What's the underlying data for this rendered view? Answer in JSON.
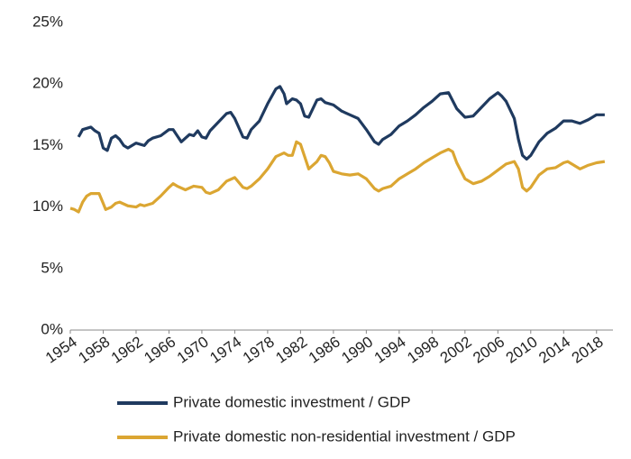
{
  "chart_data": {
    "type": "line",
    "xlim": [
      1954,
      2020
    ],
    "xticks": [
      1954,
      1958,
      1962,
      1966,
      1970,
      1974,
      1978,
      1982,
      1986,
      1990,
      1994,
      1998,
      2002,
      2006,
      2010,
      2014,
      2018
    ],
    "ylim": [
      0,
      25
    ],
    "yticks": [
      {
        "value": 0,
        "label": "0%"
      },
      {
        "value": 5,
        "label": "5%"
      },
      {
        "value": 10,
        "label": "10%"
      },
      {
        "value": 15,
        "label": "15%"
      },
      {
        "value": 20,
        "label": "20%"
      },
      {
        "value": 25,
        "label": "25%"
      }
    ],
    "grid": false,
    "legend": "bottom",
    "series": [
      {
        "name": "Private domestic investment / GDP",
        "color": "#1f3a5f",
        "x": [
          1955,
          1955.5,
          1956,
          1956.5,
          1957,
          1957.5,
          1958,
          1958.5,
          1959,
          1959.5,
          1960,
          1960.5,
          1961,
          1961.5,
          1962,
          1963,
          1963.5,
          1964,
          1965,
          1966,
          1966.5,
          1967,
          1967.5,
          1968,
          1968.5,
          1969,
          1969.5,
          1970,
          1970.5,
          1971,
          1972,
          1973,
          1973.5,
          1974,
          1975,
          1975.5,
          1976,
          1977,
          1978,
          1979,
          1979.5,
          1980,
          1980.3,
          1981,
          1981.5,
          1982,
          1982.5,
          1983,
          1984,
          1984.5,
          1985,
          1986,
          1987,
          1988,
          1989,
          1990,
          1991,
          1991.5,
          1992,
          1993,
          1994,
          1995,
          1996,
          1997,
          1998,
          1999,
          2000,
          2001,
          2002,
          2003,
          2004,
          2005,
          2006,
          2006.5,
          2007,
          2008,
          2008.5,
          2009,
          2009.5,
          2010,
          2011,
          2012,
          2013,
          2014,
          2015,
          2016,
          2017,
          2018,
          2019
        ],
        "values": [
          15.7,
          16.3,
          16.4,
          16.5,
          16.2,
          16.0,
          14.8,
          14.6,
          15.6,
          15.8,
          15.5,
          15.0,
          14.8,
          15.0,
          15.2,
          15.0,
          15.4,
          15.6,
          15.8,
          16.3,
          16.3,
          15.8,
          15.3,
          15.6,
          15.9,
          15.8,
          16.2,
          15.7,
          15.6,
          16.2,
          16.9,
          17.6,
          17.7,
          17.2,
          15.7,
          15.6,
          16.3,
          17.0,
          18.4,
          19.6,
          19.8,
          19.2,
          18.4,
          18.8,
          18.7,
          18.4,
          17.4,
          17.3,
          18.7,
          18.8,
          18.5,
          18.3,
          17.8,
          17.5,
          17.2,
          16.3,
          15.3,
          15.1,
          15.5,
          15.9,
          16.6,
          17.0,
          17.5,
          18.1,
          18.6,
          19.2,
          19.3,
          18.0,
          17.3,
          17.4,
          18.1,
          18.8,
          19.3,
          19.0,
          18.6,
          17.2,
          15.5,
          14.2,
          13.9,
          14.2,
          15.3,
          16.0,
          16.4,
          17.0,
          17.0,
          16.8,
          17.1,
          17.5,
          17.5
        ]
      },
      {
        "name": "Private domestic non-residential investment / GDP",
        "color": "#dba632",
        "x": [
          1954,
          1954.5,
          1955,
          1955.5,
          1956,
          1956.5,
          1957,
          1957.5,
          1958,
          1958.3,
          1959,
          1959.5,
          1960,
          1961,
          1962,
          1962.5,
          1963,
          1964,
          1965,
          1966,
          1966.5,
          1967,
          1968,
          1969,
          1970,
          1970.5,
          1971,
          1972,
          1973,
          1974,
          1975,
          1975.5,
          1976,
          1977,
          1978,
          1979,
          1980,
          1980.5,
          1981,
          1981.5,
          1982,
          1982.5,
          1983,
          1984,
          1984.5,
          1985,
          1985.5,
          1986,
          1987,
          1988,
          1989,
          1990,
          1991,
          1991.5,
          1992,
          1993,
          1994,
          1995,
          1996,
          1997,
          1998,
          1999,
          2000,
          2000.5,
          2001,
          2002,
          2003,
          2004,
          2005,
          2006,
          2007,
          2008,
          2008.5,
          2009,
          2009.5,
          2010,
          2011,
          2012,
          2013,
          2014,
          2014.5,
          2015,
          2016,
          2017,
          2018,
          2019
        ],
        "values": [
          9.9,
          9.8,
          9.6,
          10.4,
          10.9,
          11.1,
          11.1,
          11.1,
          10.3,
          9.8,
          10.0,
          10.3,
          10.4,
          10.1,
          10.0,
          10.2,
          10.1,
          10.3,
          10.9,
          11.6,
          11.9,
          11.7,
          11.4,
          11.7,
          11.6,
          11.2,
          11.1,
          11.4,
          12.1,
          12.4,
          11.6,
          11.5,
          11.7,
          12.3,
          13.1,
          14.1,
          14.4,
          14.2,
          14.2,
          15.3,
          15.1,
          14.1,
          13.1,
          13.7,
          14.2,
          14.1,
          13.6,
          12.9,
          12.7,
          12.6,
          12.7,
          12.3,
          11.5,
          11.3,
          11.5,
          11.7,
          12.3,
          12.7,
          13.1,
          13.6,
          14.0,
          14.4,
          14.7,
          14.5,
          13.6,
          12.3,
          11.9,
          12.1,
          12.5,
          13.0,
          13.5,
          13.7,
          13.1,
          11.6,
          11.3,
          11.6,
          12.6,
          13.1,
          13.2,
          13.6,
          13.7,
          13.5,
          13.1,
          13.4,
          13.6,
          13.7
        ]
      }
    ]
  }
}
